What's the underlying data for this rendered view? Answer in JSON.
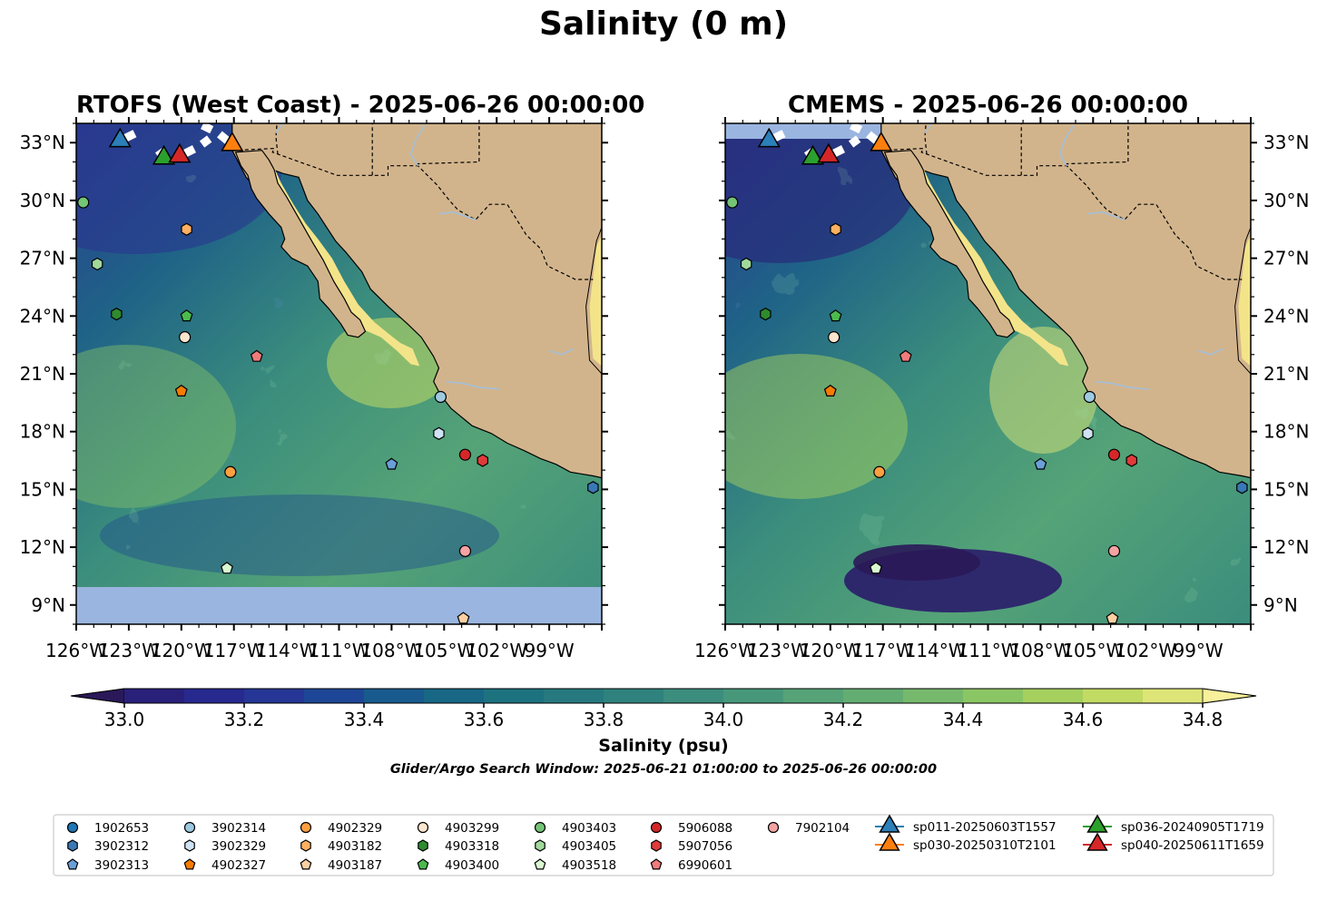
{
  "title": "Salinity (0 m)",
  "colors": {
    "land": "#d2b48c",
    "nodata": "#9ab5e0",
    "river": "#a4bfd9",
    "cmap": [
      "#2a1858",
      "#29207a",
      "#27298f",
      "#253696",
      "#1e4696",
      "#185a8e",
      "#176785",
      "#1d727f",
      "#26797e",
      "#2f827d",
      "#3b8d7d",
      "#47987b",
      "#55a377",
      "#63ad72",
      "#76b96c",
      "#8bc664",
      "#a5d05e",
      "#c2db63",
      "#dde577",
      "#f8f09a"
    ],
    "glider": {
      "sp011": "#2c7fb8",
      "sp030": "#ff7f0e",
      "sp036": "#2ca02c",
      "sp040": "#d62728"
    }
  },
  "panels": [
    {
      "id": "rtofs",
      "title": "RTOFS (West Coast) - 2025-06-26 00:00:00"
    },
    {
      "id": "cmems",
      "title": "CMEMS - 2025-06-26 00:00:00"
    }
  ],
  "colorbar": {
    "label": "Salinity (psu)",
    "ticks": [
      "33.0",
      "33.2",
      "33.4",
      "33.6",
      "33.8",
      "34.0",
      "34.2",
      "34.4",
      "34.6",
      "34.8"
    ]
  },
  "search_window": "Glider/Argo Search Window: 2025-06-21 01:00:00 to 2025-06-26 00:00:00",
  "chart_data": {
    "type": "map",
    "variable": "Salinity",
    "depth": "0 m",
    "units": "psu",
    "color_range": [
      32.9,
      34.9
    ],
    "color_levels": [
      32.9,
      33.0,
      33.1,
      33.2,
      33.3,
      33.4,
      33.5,
      33.6,
      33.7,
      33.8,
      33.9,
      34.0,
      34.1,
      34.2,
      34.3,
      34.4,
      34.5,
      34.6,
      34.7,
      34.8,
      34.9
    ],
    "extend": "both",
    "lon_range": [
      -126,
      -96
    ],
    "lat_range": [
      8,
      34
    ],
    "lon_ticks": [
      "126°W",
      "123°W",
      "120°W",
      "117°W",
      "114°W",
      "111°W",
      "108°W",
      "105°W",
      "102°W",
      "99°W"
    ],
    "lat_ticks": [
      "9°N",
      "12°N",
      "15°N",
      "18°N",
      "21°N",
      "24°N",
      "27°N",
      "30°N",
      "33°N"
    ],
    "argo_floats": [
      {
        "name": "1902653",
        "marker": "circle",
        "color": "#1f77b4",
        "lon": -126.4,
        "lat": 29.6
      },
      {
        "name": "3902312",
        "marker": "hexagon",
        "color": "#3a78b5",
        "lon": -96.5,
        "lat": 15.1
      },
      {
        "name": "3902313",
        "marker": "pentagon",
        "color": "#6a9fd8",
        "lon": -108.0,
        "lat": 16.3
      },
      {
        "name": "3902314",
        "marker": "circle",
        "color": "#9ecae1",
        "lon": -105.2,
        "lat": 19.8
      },
      {
        "name": "3902329",
        "marker": "hexagon",
        "color": "#d0e3f5",
        "lon": -105.3,
        "lat": 17.9
      },
      {
        "name": "4902327",
        "marker": "pentagon",
        "color": "#f57c00",
        "lon": -120.0,
        "lat": 20.1
      },
      {
        "name": "4902329",
        "marker": "circle",
        "color": "#ff9f40",
        "lon": -117.2,
        "lat": 15.9
      },
      {
        "name": "4903182",
        "marker": "hexagon",
        "color": "#ffb060",
        "lon": -119.7,
        "lat": 28.5
      },
      {
        "name": "4903187",
        "marker": "pentagon",
        "color": "#fdd0a2",
        "lon": -103.9,
        "lat": 8.3
      },
      {
        "name": "4903299",
        "marker": "circle",
        "color": "#fee6ce",
        "lon": -119.8,
        "lat": 22.9
      },
      {
        "name": "4903318",
        "marker": "hexagon",
        "color": "#2e8b2e",
        "lon": -123.7,
        "lat": 24.1
      },
      {
        "name": "4903400",
        "marker": "pentagon",
        "color": "#4cba4c",
        "lon": -119.7,
        "lat": 24.0
      },
      {
        "name": "4903403",
        "marker": "circle",
        "color": "#74c476",
        "lon": -125.6,
        "lat": 29.9
      },
      {
        "name": "4903405",
        "marker": "hexagon",
        "color": "#a1d99b",
        "lon": -124.8,
        "lat": 26.7
      },
      {
        "name": "4903518",
        "marker": "pentagon",
        "color": "#d9f7d0",
        "lon": -117.4,
        "lat": 10.9
      },
      {
        "name": "5906088",
        "marker": "circle",
        "color": "#d62728",
        "lon": -103.8,
        "lat": 16.8
      },
      {
        "name": "5907056",
        "marker": "hexagon",
        "color": "#e03a3a",
        "lon": -102.8,
        "lat": 16.5
      },
      {
        "name": "6990601",
        "marker": "pentagon",
        "color": "#f07b7b",
        "lon": -115.7,
        "lat": 21.9
      },
      {
        "name": "7902104",
        "marker": "circle",
        "color": "#f4a3a3",
        "lon": -103.8,
        "lat": 11.8
      }
    ],
    "gliders": [
      {
        "name": "sp011-20250603T1557",
        "color": "#2c7fb8",
        "lon": -123.5,
        "lat": 33.1,
        "track": [
          [
            -123.5,
            33.1
          ],
          [
            -122.6,
            33.5
          ]
        ]
      },
      {
        "name": "sp030-20250310T2101",
        "color": "#ff7f0e",
        "lon": -117.1,
        "lat": 32.9,
        "track": [
          [
            -117.1,
            32.9
          ],
          [
            -117.9,
            33.5
          ],
          [
            -118.8,
            33.9
          ]
        ]
      },
      {
        "name": "sp036-20240905T1719",
        "color": "#2ca02c",
        "lon": -121.0,
        "lat": 32.2,
        "track": [
          [
            -121.0,
            32.2
          ],
          [
            -121.3,
            32.6
          ]
        ]
      },
      {
        "name": "sp040-20250611T1659",
        "color": "#d62728",
        "lon": -120.1,
        "lat": 32.3,
        "track": [
          [
            -120.1,
            32.3
          ],
          [
            -119.0,
            32.8
          ],
          [
            -118.4,
            33.2
          ]
        ]
      }
    ],
    "legend_position": "bottom"
  }
}
